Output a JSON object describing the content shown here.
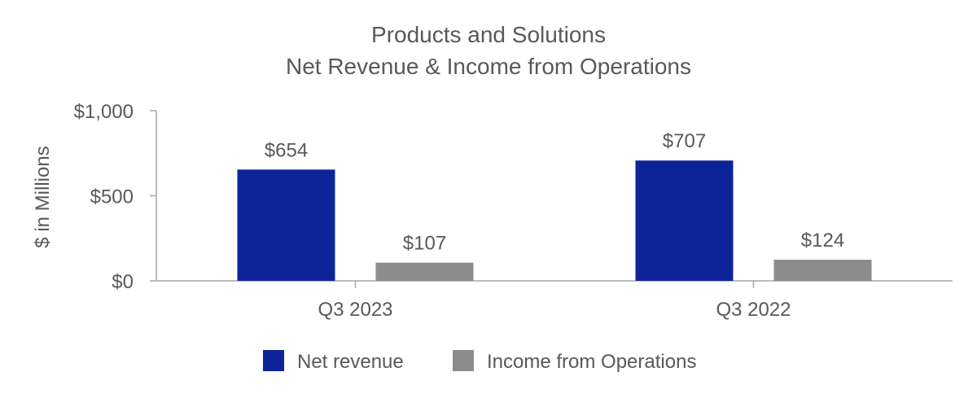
{
  "chart_data": {
    "type": "bar",
    "title": [
      "Products and Solutions",
      "Net Revenue & Income from Operations"
    ],
    "ylabel": "$ in Millions",
    "xlabel": "",
    "ylim": [
      0,
      1000
    ],
    "yticks": [
      0,
      500,
      1000
    ],
    "ytick_labels": [
      "$0",
      "$500",
      "$1,000"
    ],
    "categories": [
      "Q3 2023",
      "Q3 2022"
    ],
    "series": [
      {
        "name": "Net revenue",
        "color": "#0d2499",
        "values": [
          654,
          707
        ],
        "labels": [
          "$654",
          "$707"
        ]
      },
      {
        "name": "Income from Operations",
        "color": "#8c8c8c",
        "values": [
          107,
          124
        ],
        "labels": [
          "$107",
          "$124"
        ]
      }
    ],
    "legend_position": "bottom",
    "grid": false
  }
}
